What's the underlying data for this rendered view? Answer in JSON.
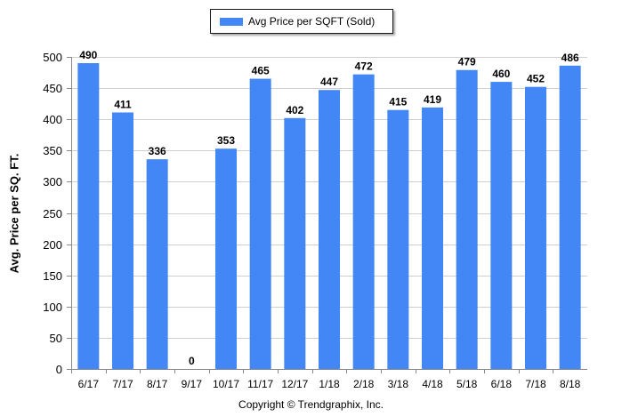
{
  "legend": {
    "label": "Avg Price per SQFT (Sold)"
  },
  "copyright": "Copyright © Trendgraphix, Inc.",
  "colors": {
    "bar": "#4287f5",
    "grid": "#cfcfcf",
    "axis": "#888888"
  },
  "chart_data": {
    "type": "bar",
    "title": "",
    "xlabel": "",
    "ylabel": "Avg. Price per SQ. FT.",
    "ylim": [
      0,
      500
    ],
    "yticks": [
      0,
      50,
      100,
      150,
      200,
      250,
      300,
      350,
      400,
      450,
      500
    ],
    "grid": true,
    "legend_position": "top-center",
    "categories": [
      "6/17",
      "7/17",
      "8/17",
      "9/17",
      "10/17",
      "11/17",
      "12/17",
      "1/18",
      "2/18",
      "3/18",
      "4/18",
      "5/18",
      "6/18",
      "7/18",
      "8/18"
    ],
    "series": [
      {
        "name": "Avg Price per SQFT (Sold)",
        "values": [
          490,
          411,
          336,
          0,
          353,
          465,
          402,
          447,
          472,
          415,
          419,
          479,
          460,
          452,
          486
        ]
      }
    ]
  }
}
